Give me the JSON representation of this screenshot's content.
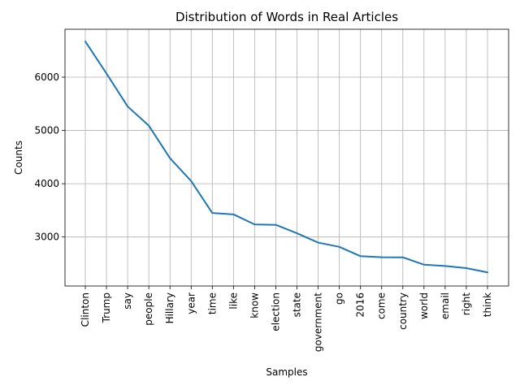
{
  "chart_data": {
    "type": "line",
    "title": "Distribution of Words in Real Articles",
    "xlabel": "Samples",
    "ylabel": "Counts",
    "categories": [
      "Clinton",
      "Trump",
      "say",
      "people",
      "Hillary",
      "year",
      "time",
      "like",
      "know",
      "election",
      "state",
      "government",
      "go",
      "2016",
      "come",
      "country",
      "world",
      "email",
      "right",
      "think"
    ],
    "values": [
      6670,
      6070,
      5450,
      5090,
      4480,
      4050,
      3450,
      3425,
      3235,
      3228,
      3070,
      2895,
      2815,
      2640,
      2620,
      2618,
      2480,
      2455,
      2415,
      2335
    ],
    "ylim": [
      2080,
      6900
    ],
    "yticks": [
      3000,
      4000,
      5000,
      6000
    ],
    "grid": true,
    "line_color": "#1f77b4"
  }
}
